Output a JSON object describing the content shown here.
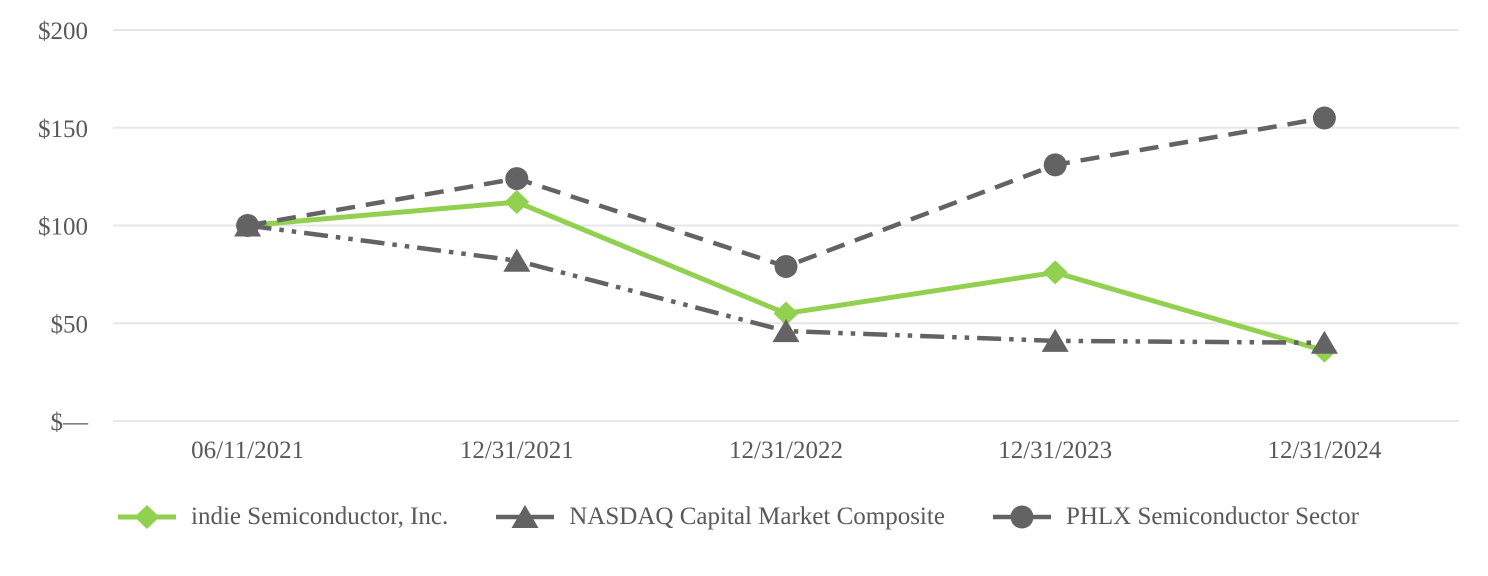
{
  "chart_data": {
    "type": "line",
    "title": "",
    "xlabel": "",
    "ylabel": "",
    "grid": true,
    "legend_position": "bottom",
    "axis_text_color": "#595959",
    "gridline_color": "#e7e7e7",
    "ylim": [
      0,
      200
    ],
    "categories": [
      "06/11/2021",
      "12/31/2021",
      "12/31/2022",
      "12/31/2023",
      "12/31/2024"
    ],
    "yticks": [
      {
        "label": "$200",
        "value": 200
      },
      {
        "label": "$150",
        "value": 150
      },
      {
        "label": "$100",
        "value": 100
      },
      {
        "label": "$50",
        "value": 50
      },
      {
        "label": "$—",
        "value": 0
      }
    ],
    "series": [
      {
        "name": "indie Semiconductor, Inc.",
        "values": [
          100,
          112,
          55,
          76,
          36
        ],
        "color": "#92d050",
        "marker": "diamond",
        "line_style": "solid"
      },
      {
        "name": "NASDAQ Capital Market Composite",
        "values": [
          100,
          82,
          46,
          41,
          40
        ],
        "color": "#636363",
        "marker": "triangle",
        "line_style": "dash-dot-dot"
      },
      {
        "name": "PHLX Semiconductor Sector",
        "values": [
          100,
          124,
          79,
          131,
          155
        ],
        "color": "#636363",
        "marker": "circle",
        "line_style": "dash"
      }
    ]
  }
}
